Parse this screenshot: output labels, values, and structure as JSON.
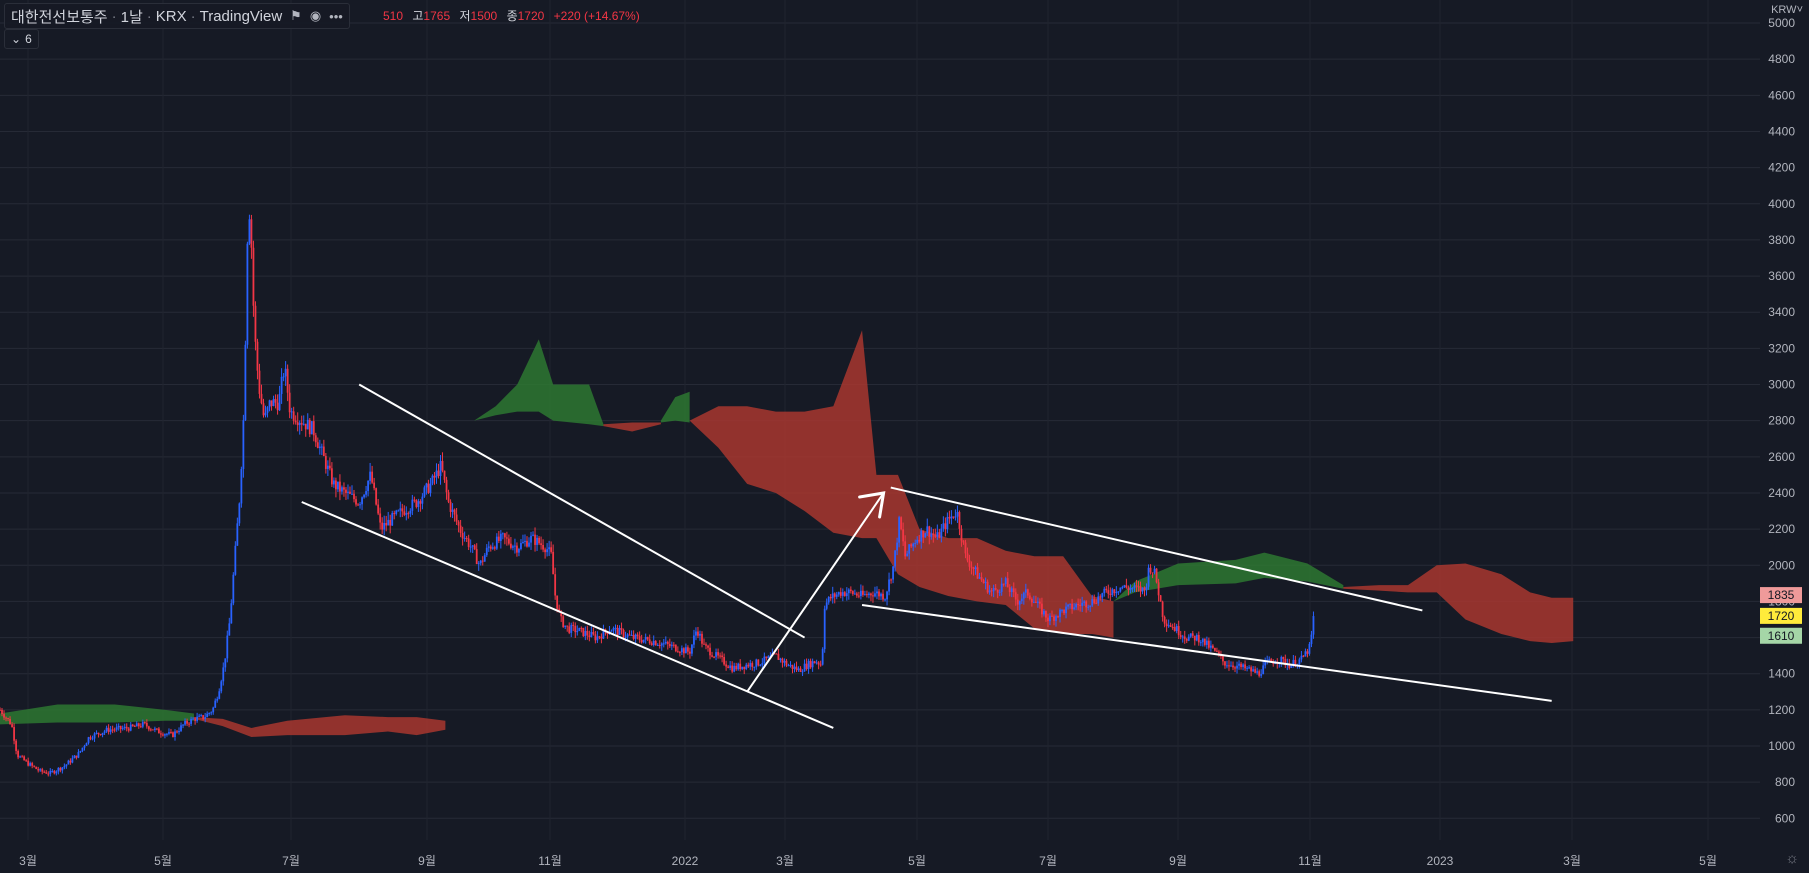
{
  "header": {
    "symbol": "대한전선보통주",
    "interval": "1날",
    "exchange": "KRX",
    "source": "TradingView",
    "ohlc": {
      "open_fragment": "510",
      "high_label": "고",
      "high": "1765",
      "low_label": "저",
      "low": "1500",
      "close_label": "종",
      "close": "1720",
      "change": "+220 (+14.67%)"
    },
    "indicators_count": "6",
    "flag_icon": "flag-icon",
    "eye_icon": "eye-icon",
    "more_icon": "more-dots-icon"
  },
  "currency": "KRW",
  "colors": {
    "background": "#161a25",
    "up_candle": "#2962ff",
    "down_candle": "#f23645",
    "cloud_bull": "#2e7d32",
    "cloud_bear": "#b2382f",
    "trend_lines": "#ffffff",
    "label_1835": "#ef9a9a",
    "label_1720": "#ffeb3b",
    "label_1610": "#a5d6a7"
  },
  "chart_data": {
    "type": "candlestick",
    "y_axis": {
      "ticks": [
        600,
        800,
        1000,
        1200,
        1400,
        1600,
        1800,
        2000,
        2200,
        2400,
        2600,
        2800,
        3000,
        3200,
        3400,
        3600,
        3800,
        4000,
        4200,
        4400,
        4600,
        4800,
        5000
      ],
      "range": [
        480,
        5050
      ],
      "grid": true
    },
    "x_axis": {
      "ticks": [
        "3월",
        "5월",
        "7월",
        "9월",
        "11월",
        "2022",
        "3월",
        "5월",
        "7월",
        "9월",
        "11월",
        "2023",
        "3월",
        "5월"
      ],
      "range_days": [
        0,
        1225
      ]
    },
    "price_labels": [
      "1835",
      "1720",
      "1610"
    ],
    "price_path": [
      [
        0,
        1200
      ],
      [
        8,
        1120
      ],
      [
        12,
        950
      ],
      [
        20,
        900
      ],
      [
        28,
        860
      ],
      [
        35,
        850
      ],
      [
        45,
        890
      ],
      [
        55,
        960
      ],
      [
        62,
        1050
      ],
      [
        75,
        1090
      ],
      [
        90,
        1100
      ],
      [
        100,
        1120
      ],
      [
        110,
        1080
      ],
      [
        120,
        1060
      ],
      [
        128,
        1120
      ],
      [
        135,
        1150
      ],
      [
        142,
        1160
      ],
      [
        148,
        1200
      ],
      [
        152,
        1300
      ],
      [
        156,
        1450
      ],
      [
        160,
        1700
      ],
      [
        163,
        2000
      ],
      [
        167,
        2400
      ],
      [
        170,
        2900
      ],
      [
        172,
        3800
      ],
      [
        174,
        4000
      ],
      [
        177,
        3300
      ],
      [
        180,
        3000
      ],
      [
        184,
        2800
      ],
      [
        188,
        2900
      ],
      [
        194,
        2900
      ],
      [
        198,
        3100
      ],
      [
        202,
        2850
      ],
      [
        210,
        2800
      ],
      [
        218,
        2750
      ],
      [
        225,
        2600
      ],
      [
        232,
        2450
      ],
      [
        240,
        2400
      ],
      [
        250,
        2350
      ],
      [
        258,
        2500
      ],
      [
        265,
        2200
      ],
      [
        272,
        2250
      ],
      [
        280,
        2300
      ],
      [
        290,
        2350
      ],
      [
        300,
        2450
      ],
      [
        307,
        2550
      ],
      [
        312,
        2350
      ],
      [
        320,
        2200
      ],
      [
        328,
        2100
      ],
      [
        334,
        2000
      ],
      [
        340,
        2100
      ],
      [
        350,
        2150
      ],
      [
        360,
        2100
      ],
      [
        370,
        2150
      ],
      [
        380,
        2100
      ],
      [
        384,
        2050
      ],
      [
        386,
        1850
      ],
      [
        390,
        1700
      ],
      [
        395,
        1650
      ],
      [
        402,
        1640
      ],
      [
        415,
        1600
      ],
      [
        425,
        1650
      ],
      [
        440,
        1600
      ],
      [
        455,
        1580
      ],
      [
        468,
        1550
      ],
      [
        480,
        1520
      ],
      [
        485,
        1650
      ],
      [
        490,
        1550
      ],
      [
        498,
        1500
      ],
      [
        510,
        1430
      ],
      [
        520,
        1450
      ],
      [
        528,
        1460
      ],
      [
        540,
        1500
      ],
      [
        548,
        1450
      ],
      [
        556,
        1420
      ],
      [
        562,
        1450
      ],
      [
        568,
        1470
      ],
      [
        572,
        1450
      ],
      [
        574,
        1780
      ],
      [
        578,
        1820
      ],
      [
        585,
        1850
      ],
      [
        592,
        1850
      ],
      [
        600,
        1830
      ],
      [
        608,
        1850
      ],
      [
        616,
        1830
      ],
      [
        622,
        2000
      ],
      [
        626,
        2250
      ],
      [
        630,
        2050
      ],
      [
        638,
        2150
      ],
      [
        645,
        2200
      ],
      [
        652,
        2150
      ],
      [
        660,
        2250
      ],
      [
        666,
        2300
      ],
      [
        672,
        2050
      ],
      [
        680,
        1950
      ],
      [
        690,
        1850
      ],
      [
        700,
        1900
      ],
      [
        708,
        1800
      ],
      [
        715,
        1850
      ],
      [
        722,
        1780
      ],
      [
        730,
        1700
      ],
      [
        740,
        1750
      ],
      [
        750,
        1780
      ],
      [
        760,
        1800
      ],
      [
        770,
        1850
      ],
      [
        780,
        1880
      ],
      [
        790,
        1870
      ],
      [
        797,
        1860
      ],
      [
        800,
        2000
      ],
      [
        804,
        1950
      ],
      [
        810,
        1700
      ],
      [
        818,
        1650
      ],
      [
        826,
        1600
      ],
      [
        834,
        1600
      ],
      [
        840,
        1560
      ],
      [
        846,
        1520
      ],
      [
        852,
        1460
      ],
      [
        862,
        1440
      ],
      [
        870,
        1420
      ],
      [
        876,
        1400
      ],
      [
        882,
        1460
      ],
      [
        890,
        1480
      ],
      [
        898,
        1450
      ],
      [
        906,
        1480
      ],
      [
        912,
        1550
      ],
      [
        915,
        1760
      ]
    ],
    "cloud_segments": [
      {
        "trend": "bull",
        "points": [
          [
            0,
            1120,
            1180
          ],
          [
            40,
            1130,
            1230
          ],
          [
            80,
            1130,
            1230
          ],
          [
            115,
            1140,
            1200
          ],
          [
            135,
            1140,
            1180
          ]
        ]
      },
      {
        "trend": "bear",
        "points": [
          [
            135,
            1150,
            1160
          ],
          [
            155,
            1150,
            1110
          ],
          [
            175,
            1100,
            1050
          ],
          [
            200,
            1060,
            1140
          ],
          [
            240,
            1060,
            1170
          ],
          [
            270,
            1080,
            1160
          ],
          [
            290,
            1060,
            1160
          ],
          [
            310,
            1090,
            1140
          ]
        ]
      },
      {
        "trend": "bull",
        "points": [
          [
            330,
            2800,
            2800
          ],
          [
            345,
            2830,
            2880
          ],
          [
            360,
            2850,
            3000
          ],
          [
            375,
            2850,
            3250
          ],
          [
            385,
            2800,
            3000
          ],
          [
            410,
            2780,
            3000
          ],
          [
            420,
            2770,
            2780
          ]
        ]
      },
      {
        "trend": "bear",
        "points": [
          [
            420,
            2770,
            2780
          ],
          [
            440,
            2740,
            2790
          ],
          [
            460,
            2780,
            2790
          ]
        ]
      },
      {
        "trend": "bull",
        "points": [
          [
            460,
            2790,
            2800
          ],
          [
            470,
            2800,
            2930
          ],
          [
            480,
            2790,
            2960
          ]
        ]
      },
      {
        "trend": "bear",
        "points": [
          [
            480,
            2800,
            2800
          ],
          [
            500,
            2650,
            2880
          ],
          [
            520,
            2450,
            2880
          ],
          [
            540,
            2400,
            2850
          ],
          [
            560,
            2300,
            2850
          ],
          [
            580,
            2180,
            2880
          ],
          [
            600,
            2150,
            3300
          ],
          [
            610,
            2150,
            2500
          ],
          [
            625,
            1950,
            2500
          ],
          [
            640,
            1880,
            2200
          ],
          [
            660,
            1830,
            2150
          ],
          [
            680,
            1800,
            2150
          ],
          [
            700,
            1780,
            2080
          ],
          [
            720,
            1650,
            2050
          ],
          [
            740,
            1620,
            2050
          ],
          [
            760,
            1620,
            1830
          ],
          [
            775,
            1600,
            1800
          ]
        ]
      },
      {
        "trend": "bull",
        "points": [
          [
            775,
            1800,
            1800
          ],
          [
            790,
            1850,
            1910
          ],
          [
            820,
            1890,
            2010
          ],
          [
            860,
            1900,
            2030
          ],
          [
            880,
            1930,
            2070
          ],
          [
            910,
            1910,
            2010
          ],
          [
            935,
            1870,
            1890
          ]
        ]
      },
      {
        "trend": "bear",
        "points": [
          [
            935,
            1870,
            1880
          ],
          [
            960,
            1860,
            1890
          ],
          [
            980,
            1850,
            1890
          ],
          [
            1000,
            1850,
            2000
          ],
          [
            1020,
            1700,
            2010
          ],
          [
            1045,
            1620,
            1950
          ],
          [
            1065,
            1580,
            1850
          ],
          [
            1080,
            1570,
            1820
          ],
          [
            1095,
            1580,
            1820
          ]
        ]
      }
    ],
    "trend_lines": [
      {
        "from": [
          250,
          3000
        ],
        "to": [
          560,
          1600
        ]
      },
      {
        "from": [
          210,
          2350
        ],
        "to": [
          580,
          1100
        ]
      },
      {
        "from": [
          520,
          1300
        ],
        "to": [
          615,
          2400
        ]
      },
      {
        "from": [
          620,
          2430
        ],
        "to": [
          990,
          1750
        ]
      },
      {
        "from": [
          600,
          1780
        ],
        "to": [
          1080,
          1250
        ]
      }
    ]
  }
}
